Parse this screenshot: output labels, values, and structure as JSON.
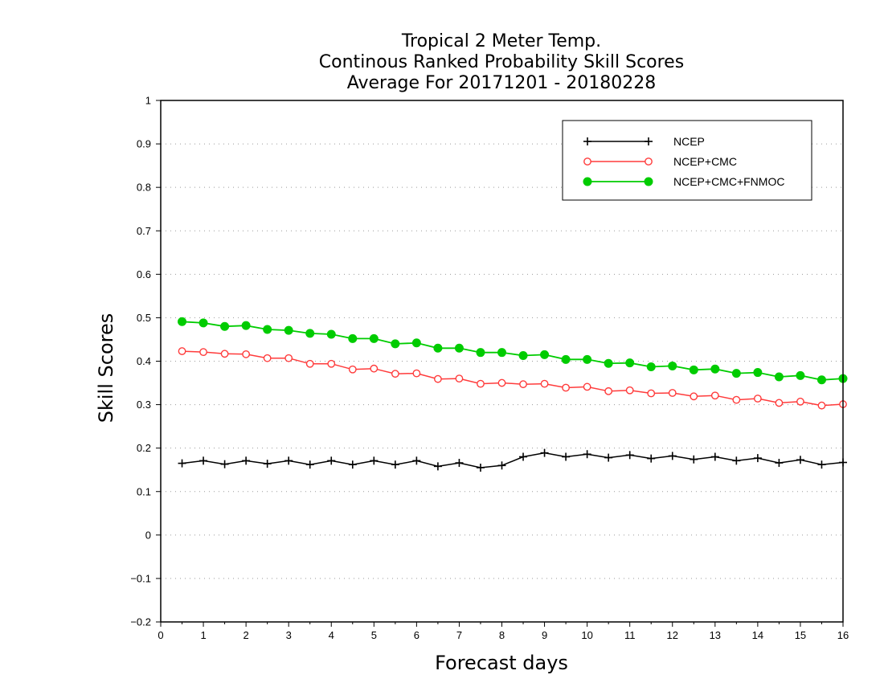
{
  "chart_data": {
    "type": "line",
    "title_lines": [
      "Tropical 2 Meter Temp.",
      "Continous Ranked Probability Skill Scores",
      "Average For 20171201 - 20180228"
    ],
    "xlabel": "Forecast days",
    "ylabel": "Skill Scores",
    "xlim": [
      0,
      16
    ],
    "ylim": [
      -0.2,
      1
    ],
    "x_ticks": [
      "0",
      "1",
      "2",
      "3",
      "4",
      "5",
      "6",
      "7",
      "8",
      "9",
      "10",
      "11",
      "12",
      "13",
      "14",
      "15",
      "16"
    ],
    "y_ticks": [
      "−0.2",
      "−0.1",
      "0",
      "0.1",
      "0.2",
      "0.3",
      "0.4",
      "0.5",
      "0.6",
      "0.7",
      "0.8",
      "0.9",
      "1"
    ],
    "grid": "horizontal dotted",
    "legend_position": "top-right",
    "x": [
      0.5,
      1,
      1.5,
      2,
      2.5,
      3,
      3.5,
      4,
      4.5,
      5,
      5.5,
      6,
      6.5,
      7,
      7.5,
      8,
      8.5,
      9,
      9.5,
      10,
      10.5,
      11,
      11.5,
      12,
      12.5,
      13,
      13.5,
      14,
      14.5,
      15,
      15.5,
      16
    ],
    "series": [
      {
        "name": "NCEP",
        "color": "#000000",
        "marker": "plus",
        "values": [
          0.165,
          0.171,
          0.163,
          0.171,
          0.164,
          0.171,
          0.162,
          0.171,
          0.162,
          0.171,
          0.162,
          0.171,
          0.158,
          0.166,
          0.155,
          0.16,
          0.18,
          0.189,
          0.18,
          0.186,
          0.178,
          0.184,
          0.176,
          0.182,
          0.174,
          0.18,
          0.171,
          0.177,
          0.166,
          0.173,
          0.162,
          0.167
        ]
      },
      {
        "name": "NCEP+CMC",
        "color": "#ff3b3b",
        "marker": "open-circle",
        "values": [
          0.423,
          0.421,
          0.417,
          0.416,
          0.407,
          0.407,
          0.394,
          0.394,
          0.381,
          0.383,
          0.371,
          0.372,
          0.359,
          0.36,
          0.348,
          0.35,
          0.347,
          0.348,
          0.339,
          0.341,
          0.331,
          0.333,
          0.326,
          0.327,
          0.319,
          0.321,
          0.311,
          0.314,
          0.304,
          0.307,
          0.298,
          0.301
        ]
      },
      {
        "name": "NCEP+CMC+FNMOC",
        "color": "#00cc00",
        "marker": "filled-circle",
        "values": [
          0.491,
          0.488,
          0.48,
          0.482,
          0.473,
          0.471,
          0.464,
          0.462,
          0.452,
          0.452,
          0.44,
          0.442,
          0.43,
          0.43,
          0.42,
          0.42,
          0.413,
          0.415,
          0.404,
          0.404,
          0.395,
          0.396,
          0.387,
          0.389,
          0.38,
          0.382,
          0.372,
          0.374,
          0.364,
          0.367,
          0.357,
          0.36
        ]
      }
    ]
  }
}
